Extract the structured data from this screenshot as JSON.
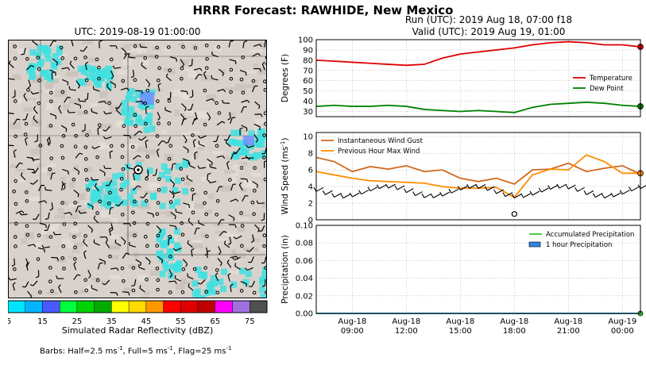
{
  "title": "HRRR Forecast: RAWHIDE, New Mexico",
  "map": {
    "title": "UTC: 2019-08-19 01:00:00",
    "colorbar": {
      "colors": [
        "#00e5ff",
        "#00b4ff",
        "#4a5aff",
        "#00ff40",
        "#00d400",
        "#00aa00",
        "#ffff00",
        "#ffd900",
        "#ff9800",
        "#ff0000",
        "#e00000",
        "#c00000",
        "#ff00ff",
        "#a070e0",
        "#505050"
      ],
      "tick_labels": [
        "5",
        "15",
        "25",
        "35",
        "45",
        "55",
        "65",
        "75"
      ],
      "label": "Simulated Radar Reflectivity (dBZ)"
    },
    "barbs_note": {
      "prefix": "Barbs: Half=2.5 ms",
      "mid1": ", Full=5 ms",
      "mid2": ", Flag=25 ms",
      "exp": "-1"
    }
  },
  "run_line": "Run (UTC): 2019 Aug 18, 07:00 f18",
  "valid_line": "Valid (UTC): 2019 Aug 19, 01:00",
  "x_tick_labels": [
    [
      "Aug-18",
      "09:00"
    ],
    [
      "Aug-18",
      "12:00"
    ],
    [
      "Aug-18",
      "15:00"
    ],
    [
      "Aug-18",
      "18:00"
    ],
    [
      "Aug-18",
      "21:00"
    ],
    [
      "Aug-19",
      "00:00"
    ]
  ],
  "chart_data": [
    {
      "type": "line",
      "ylabel": "Degrees (F)",
      "ylim": [
        25,
        100
      ],
      "yticks": [
        30,
        40,
        50,
        60,
        70,
        80,
        90,
        100
      ],
      "x_hours": [
        7,
        8,
        9,
        10,
        11,
        12,
        13,
        14,
        15,
        16,
        17,
        18,
        19,
        20,
        21,
        22,
        23,
        24,
        25
      ],
      "series": [
        {
          "name": "Temperature",
          "color": "#e00000",
          "values": [
            80,
            79,
            78,
            77,
            76,
            75,
            76,
            82,
            86,
            88,
            90,
            92,
            95,
            97,
            98,
            97,
            95,
            95,
            93
          ]
        },
        {
          "name": "Dew Point",
          "color": "#008000",
          "values": [
            35,
            36,
            35,
            35,
            36,
            35,
            32,
            31,
            30,
            31,
            30,
            29,
            34,
            37,
            38,
            39,
            38,
            36,
            35
          ]
        }
      ],
      "legend": "right",
      "grid": true
    },
    {
      "type": "line",
      "ylabel": "Wind Speed (ms",
      "ylabel_exp": "-1",
      "ylabel_close": ")",
      "ylim": [
        0,
        10.5
      ],
      "yticks": [
        0,
        2,
        4,
        6,
        8,
        10
      ],
      "x_hours": [
        7,
        8,
        9,
        10,
        11,
        12,
        13,
        14,
        15,
        16,
        17,
        18,
        19,
        20,
        21,
        22,
        23,
        24,
        25
      ],
      "series": [
        {
          "name": "Instantaneous Wind Gust",
          "color": "#d2691e",
          "values": [
            7.5,
            7.0,
            5.8,
            6.4,
            6.1,
            6.5,
            5.8,
            6.0,
            5.0,
            4.6,
            5.0,
            4.3,
            6.0,
            6.1,
            6.8,
            5.8,
            6.2,
            6.5,
            5.5
          ]
        },
        {
          "name": "Previous Hour Max Wind",
          "color": "#ff8c00",
          "values": [
            5.8,
            5.4,
            5.0,
            4.7,
            4.6,
            4.5,
            4.4,
            4.0,
            3.8,
            3.8,
            3.9,
            2.7,
            5.4,
            6.1,
            6.0,
            7.8,
            7.0,
            5.6,
            5.6
          ]
        }
      ],
      "legend": "top-left",
      "grid": true
    },
    {
      "type": "line",
      "ylabel": "Precipitation (in)",
      "ylim": [
        0,
        0.1
      ],
      "yticks": [
        "0.00",
        "0.02",
        "0.04",
        "0.06",
        "0.08",
        "0.10"
      ],
      "x_hours": [
        7,
        8,
        9,
        10,
        11,
        12,
        13,
        14,
        15,
        16,
        17,
        18,
        19,
        20,
        21,
        22,
        23,
        24,
        25
      ],
      "series": [
        {
          "name": "Accumulated Precipitation",
          "color": "#33cc33",
          "values": [
            0,
            0,
            0,
            0,
            0,
            0,
            0,
            0,
            0,
            0,
            0,
            0,
            0,
            0,
            0,
            0,
            0,
            0,
            0
          ]
        },
        {
          "name": "1 hour Precipitation",
          "color": "#2e86de",
          "values": [
            0,
            0,
            0,
            0,
            0,
            0,
            0,
            0,
            0,
            0,
            0,
            0,
            0,
            0,
            0,
            0,
            0,
            0,
            0
          ]
        }
      ],
      "legend": "top-right",
      "grid": true
    }
  ]
}
